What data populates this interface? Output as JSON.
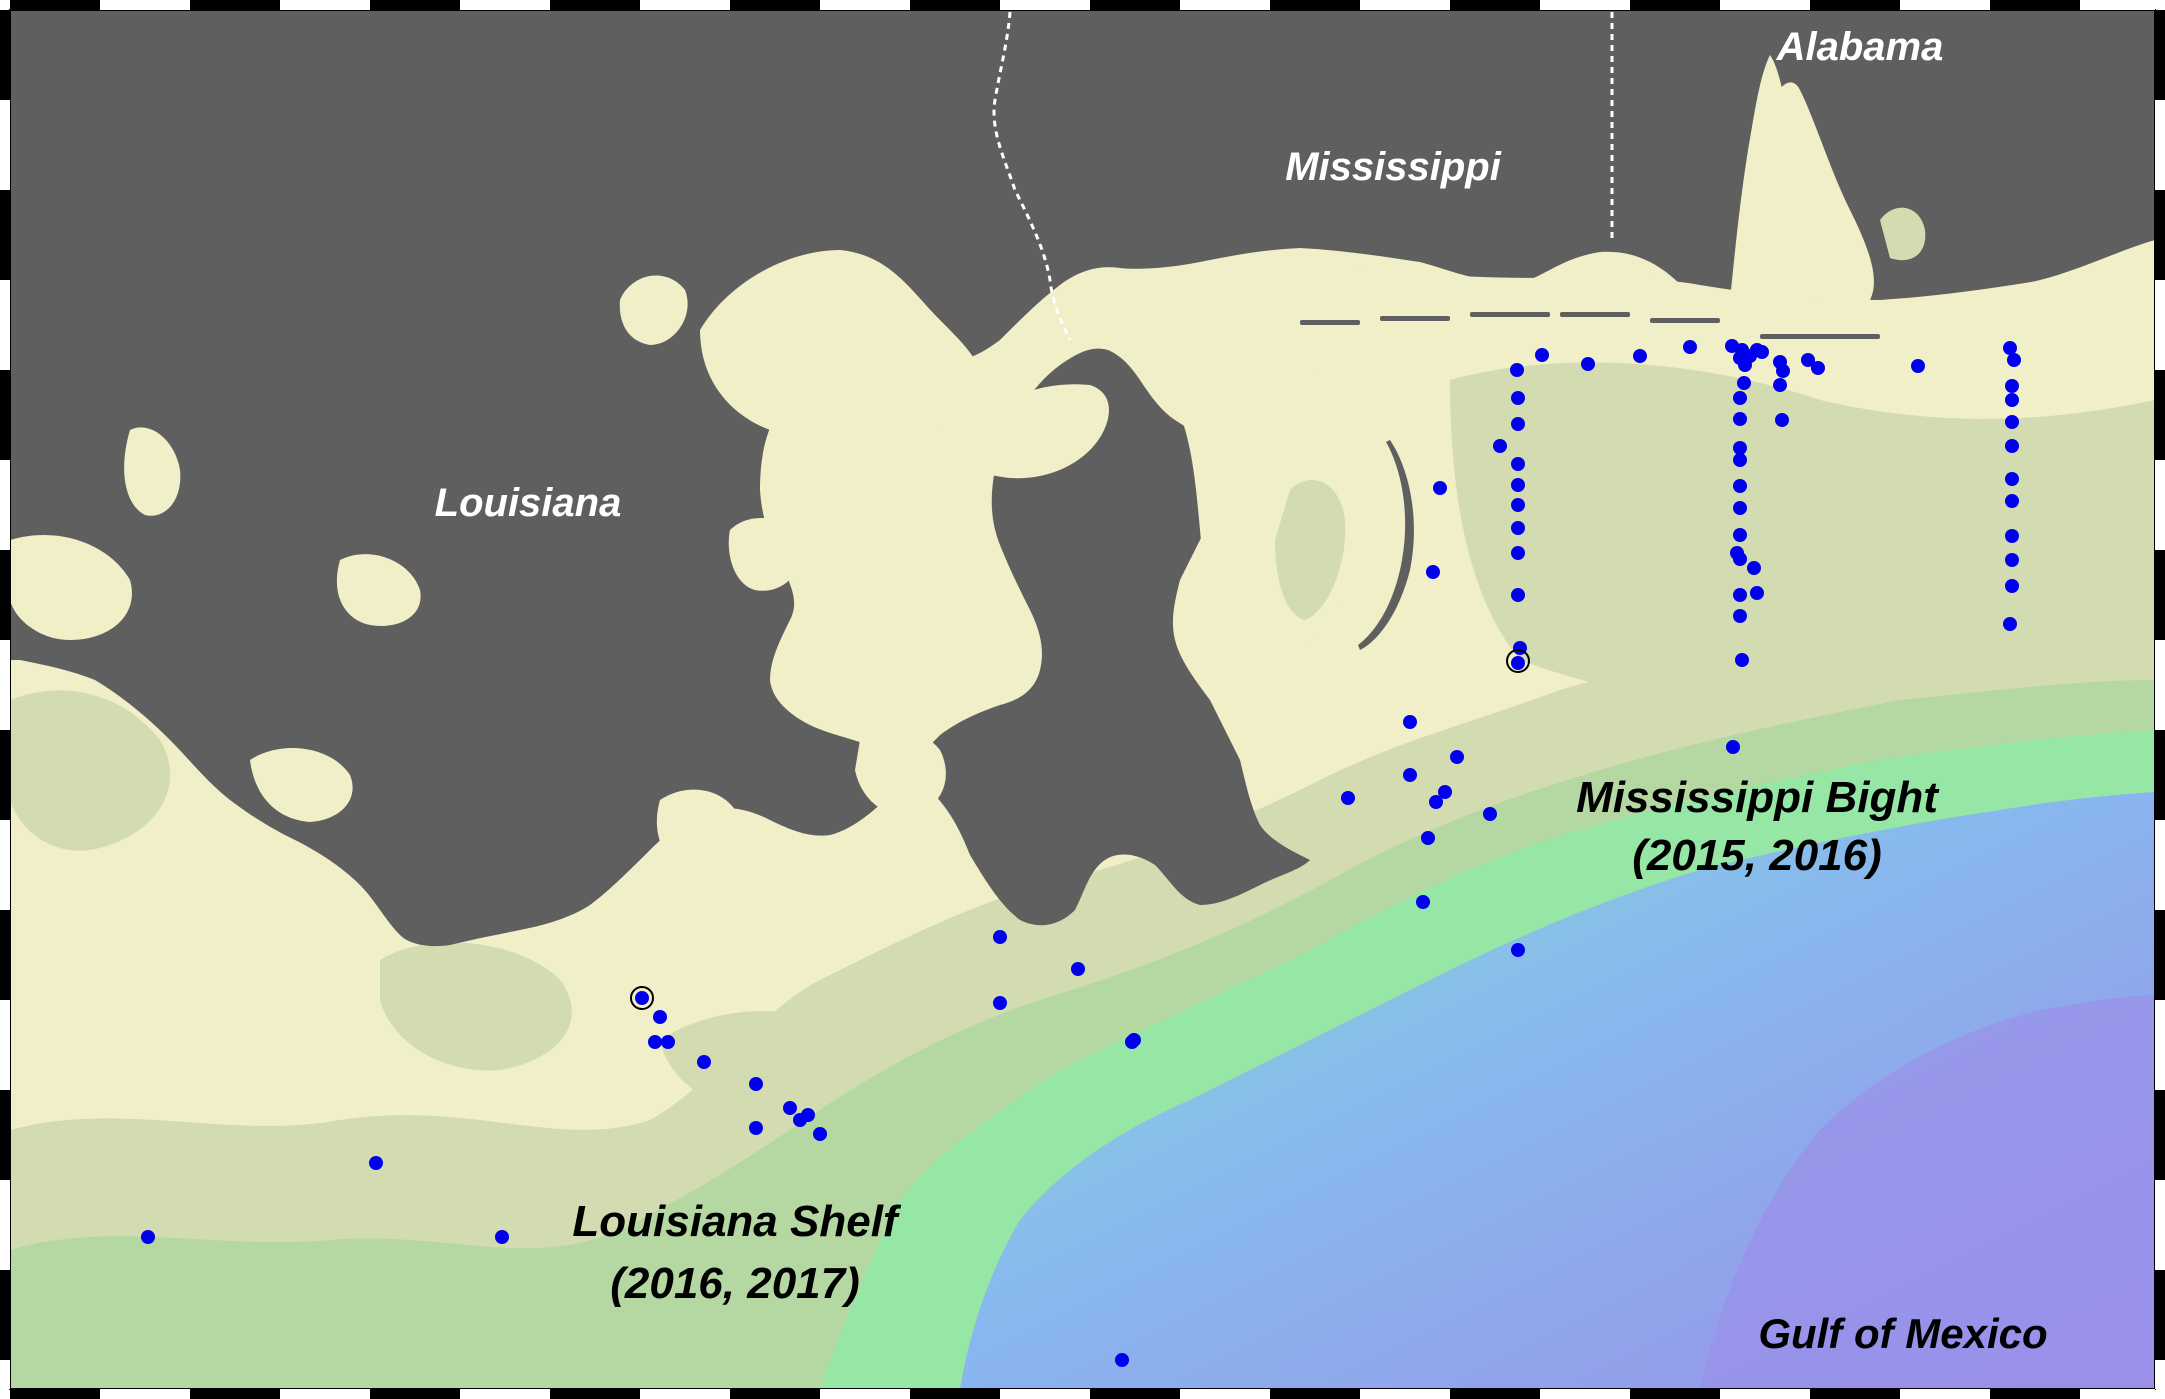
{
  "map": {
    "labels": {
      "louisiana": "Louisiana",
      "mississippi": "Mississippi",
      "alabama": "Alabama",
      "ms_bight_name": "Mississippi Bight",
      "ms_bight_years": "(2015, 2016)",
      "la_shelf_name": "Louisiana Shelf",
      "la_shelf_years": "(2016, 2017)",
      "gulf": "Gulf of Mexico"
    },
    "colors": {
      "land": "#5f5f5f",
      "shallow_water": "#f0efc8",
      "shelf_water": "#d2dcb0",
      "mid_shelf": "#b5d8a2",
      "slope_green": "#96e6a6",
      "slope_cyan": "#8ad8e0",
      "deep_blue": "#8aa8f0",
      "deepest": "#9a90ea",
      "station_dot": "#0000ee",
      "state_border": "#ffffff"
    },
    "station_count": 79
  }
}
